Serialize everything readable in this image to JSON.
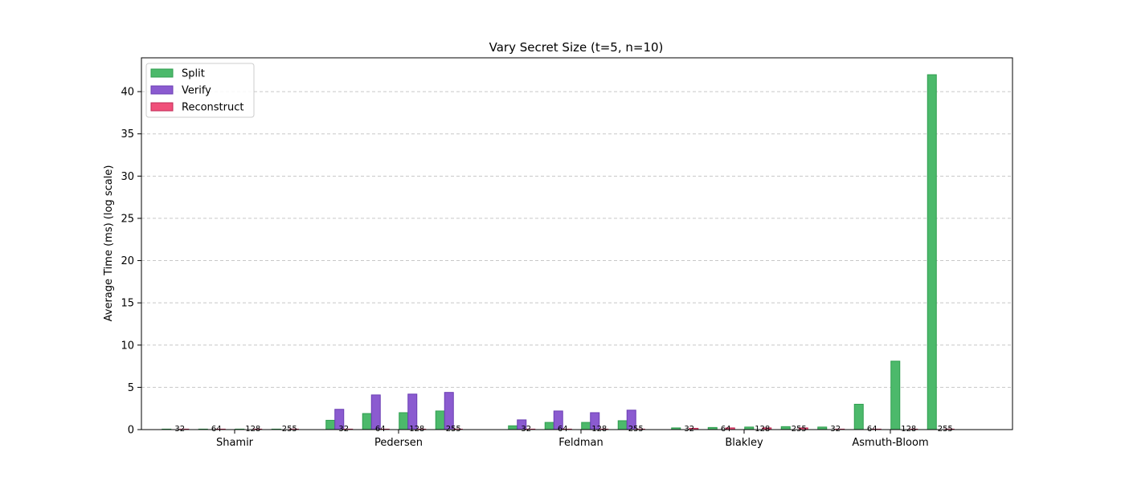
{
  "chart_data": {
    "type": "bar",
    "title": "Vary Secret Size (t=5, n=10)",
    "xlabel": "",
    "ylabel": "Average Time (ms) (log scale)",
    "ylim": [
      0,
      44
    ],
    "yticks": [
      0,
      5,
      10,
      15,
      20,
      25,
      30,
      35,
      40
    ],
    "grid": "y-dashed",
    "legend_position": "top-left",
    "groups": [
      "Shamir",
      "Pedersen",
      "Feldman",
      "Blakley",
      "Asmuth-Bloom"
    ],
    "secret_sizes": [
      "32",
      "64",
      "128",
      "255"
    ],
    "series": [
      {
        "name": "Split",
        "color": "#4cb96b",
        "edge": "#2f9e4f",
        "values": [
          [
            0.01,
            0.01,
            0.01,
            0.01
          ],
          [
            1.1,
            1.9,
            2.0,
            2.2
          ],
          [
            0.45,
            0.85,
            0.85,
            1.05
          ],
          [
            0.2,
            0.25,
            0.3,
            0.35
          ],
          [
            0.3,
            3.0,
            8.1,
            42.0
          ]
        ]
      },
      {
        "name": "Verify",
        "color": "#8b5bd0",
        "edge": "#6a3db3",
        "values": [
          [
            null,
            null,
            null,
            null
          ],
          [
            2.4,
            4.1,
            4.2,
            4.4
          ],
          [
            1.15,
            2.2,
            2.0,
            2.3
          ],
          [
            null,
            null,
            null,
            null
          ],
          [
            null,
            null,
            null,
            null
          ]
        ]
      },
      {
        "name": "Reconstruct",
        "color": "#f0507a",
        "edge": "#c02a55",
        "values": [
          [
            0.01,
            0.01,
            0.01,
            0.01
          ],
          [
            0.01,
            0.01,
            0.01,
            0.01
          ],
          [
            0.01,
            0.01,
            0.01,
            0.01
          ],
          [
            0.15,
            0.2,
            0.2,
            0.2
          ],
          [
            0.01,
            0.01,
            0.01,
            0.01
          ]
        ]
      }
    ]
  }
}
